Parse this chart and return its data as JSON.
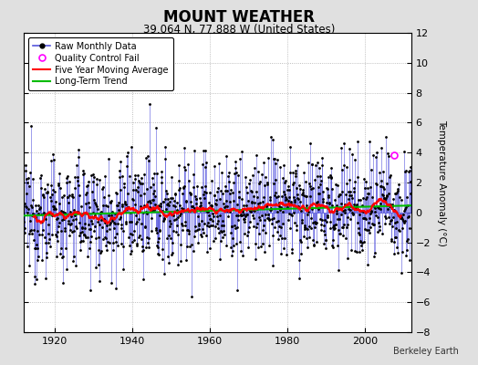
{
  "title": "MOUNT WEATHER",
  "subtitle": "39.064 N, 77.888 W (United States)",
  "ylabel": "Temperature Anomaly (°C)",
  "credit": "Berkeley Earth",
  "xlim": [
    1912,
    2012
  ],
  "ylim": [
    -8,
    12
  ],
  "yticks": [
    -8,
    -6,
    -4,
    -2,
    0,
    2,
    4,
    6,
    8,
    10,
    12
  ],
  "xticks": [
    1920,
    1940,
    1960,
    1980,
    2000
  ],
  "start_year": 1912,
  "end_year": 2011,
  "bg_color": "#e0e0e0",
  "plot_bg_color": "#ffffff",
  "raw_line_color": "#5555dd",
  "raw_marker_color": "#000000",
  "moving_avg_color": "#ff0000",
  "trend_color": "#00bb00",
  "qc_fail_color": "#ff00ff",
  "seed": 12345,
  "noise_std": 1.8,
  "trend_slope": 0.008,
  "trend_intercept": 0.15
}
